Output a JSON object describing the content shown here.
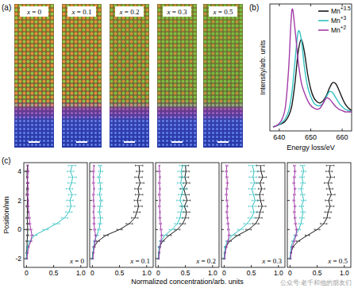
{
  "figure": {
    "panel_labels": [
      "(a)",
      "(b)",
      "(c)"
    ],
    "maps": [
      "x = 0",
      "x = 0.1",
      "x = 0.2",
      "x = 0.3",
      "x = 0.5"
    ],
    "watermark": "公众号·老千和他的朋友们"
  },
  "chart_data": [
    {
      "type": "line",
      "x_label": "Energy loss/eV",
      "y_label": "Intensity/arb. units",
      "x": [
        638,
        639,
        640,
        641,
        642,
        643,
        644,
        645,
        646,
        647,
        648,
        649,
        650,
        651,
        652,
        653,
        654,
        655,
        656,
        657,
        658,
        659,
        660,
        661,
        662,
        663
      ],
      "xlim": [
        637,
        663
      ],
      "ylim": [
        0,
        1
      ],
      "xticks": [
        640,
        650,
        660
      ],
      "tick_labels": "x",
      "legend": "upper right",
      "series": [
        {
          "name": "Mn+3.5",
          "color": "#1a1a1a",
          "values": [
            0.03,
            0.04,
            0.05,
            0.06,
            0.08,
            0.12,
            0.2,
            0.38,
            0.62,
            0.72,
            0.62,
            0.45,
            0.33,
            0.26,
            0.23,
            0.22,
            0.24,
            0.28,
            0.34,
            0.38,
            0.37,
            0.32,
            0.26,
            0.21,
            0.18,
            0.16
          ]
        },
        {
          "name": "Mn+3",
          "color": "#33c1c1",
          "values": [
            0.03,
            0.04,
            0.05,
            0.07,
            0.1,
            0.16,
            0.3,
            0.55,
            0.78,
            0.72,
            0.5,
            0.35,
            0.27,
            0.22,
            0.2,
            0.2,
            0.22,
            0.27,
            0.31,
            0.3,
            0.26,
            0.22,
            0.19,
            0.17,
            0.16,
            0.15
          ]
        },
        {
          "name": "Mn+2",
          "color": "#a23ba8",
          "values": [
            0.03,
            0.04,
            0.06,
            0.1,
            0.2,
            0.5,
            0.95,
            0.8,
            0.55,
            0.38,
            0.3,
            0.24,
            0.2,
            0.18,
            0.17,
            0.18,
            0.22,
            0.26,
            0.25,
            0.22,
            0.19,
            0.17,
            0.16,
            0.15,
            0.15,
            0.15
          ]
        }
      ]
    },
    {
      "type": "line",
      "orientation": "horizontal",
      "annotation": "x = 0",
      "y_label": "Position/nm",
      "y": [
        -2,
        -1.6,
        -1.2,
        -0.8,
        -0.4,
        0,
        0.4,
        0.8,
        1.2,
        1.6,
        2,
        2.4,
        2.8,
        3.2,
        3.6,
        4,
        4.4
      ],
      "xlim": [
        -0.05,
        1.12
      ],
      "ylim": [
        -2.6,
        4.6
      ],
      "xticks": [
        0,
        0.5,
        {
          "value": 1,
          "label": "1.0"
        }
      ],
      "yticks": [
        -2,
        0,
        2,
        4
      ],
      "tick_labels": true,
      "series": [
        {
          "color": "#1a1a1a",
          "values": [
            0.0,
            0.0,
            0.01,
            0.01,
            0.02,
            0.02,
            0.02,
            0.01,
            0.02,
            0.01,
            0.02,
            0.01,
            0.01,
            0.02,
            0.01,
            0.01,
            0.02
          ],
          "errors": [
            0.01,
            0.01,
            0.01,
            0.02,
            0.02,
            0.02,
            0.02,
            0.02,
            0.01,
            0.02,
            0.01,
            0.02,
            0.01,
            0.02,
            0.01,
            0.02,
            0.01
          ]
        },
        {
          "color": "#33c1c1",
          "values": [
            0.0,
            0.01,
            0.02,
            0.06,
            0.15,
            0.35,
            0.55,
            0.7,
            0.78,
            0.82,
            0.8,
            0.84,
            0.79,
            0.83,
            0.85,
            0.81,
            0.84
          ],
          "errors": [
            0.01,
            0.01,
            0.02,
            0.03,
            0.04,
            0.05,
            0.06,
            0.06,
            0.06,
            0.07,
            0.06,
            0.07,
            0.06,
            0.07,
            0.07,
            0.06,
            0.07
          ]
        },
        {
          "color": "#a23ba8",
          "values": [
            0.01,
            0.02,
            0.04,
            0.08,
            0.1,
            0.08,
            0.06,
            0.05,
            0.04,
            0.03,
            0.03,
            0.02,
            0.03,
            0.02,
            0.02,
            0.03,
            0.02
          ],
          "errors": [
            0.01,
            0.01,
            0.01,
            0.02,
            0.02,
            0.02,
            0.02,
            0.02,
            0.01,
            0.02,
            0.01,
            0.02,
            0.01,
            0.02,
            0.01,
            0.02,
            0.01
          ]
        }
      ]
    },
    {
      "type": "line",
      "orientation": "horizontal",
      "annotation": "x = 0.1",
      "y": [
        -2,
        -1.6,
        -1.2,
        -0.8,
        -0.4,
        0,
        0.4,
        0.8,
        1.2,
        1.6,
        2,
        2.4,
        2.8,
        3.2,
        3.6,
        4,
        4.4
      ],
      "xlim": [
        -0.05,
        1.12
      ],
      "ylim": [
        -2.6,
        4.6
      ],
      "xticks": [
        0,
        0.5,
        {
          "value": 1,
          "label": "1.0"
        }
      ],
      "yticks": [
        -2,
        0,
        2,
        4
      ],
      "tick_labels": "x",
      "series": [
        {
          "color": "#1a1a1a",
          "values": [
            0.0,
            0.01,
            0.03,
            0.1,
            0.25,
            0.5,
            0.68,
            0.78,
            0.82,
            0.85,
            0.83,
            0.86,
            0.84,
            0.88,
            0.85,
            0.87,
            0.86
          ],
          "errors": [
            0.01,
            0.01,
            0.02,
            0.03,
            0.04,
            0.05,
            0.06,
            0.06,
            0.06,
            0.07,
            0.06,
            0.07,
            0.06,
            0.07,
            0.07,
            0.06,
            0.07
          ]
        },
        {
          "color": "#33c1c1",
          "values": [
            0.0,
            0.01,
            0.02,
            0.04,
            0.08,
            0.12,
            0.14,
            0.15,
            0.13,
            0.14,
            0.16,
            0.13,
            0.15,
            0.14,
            0.12,
            0.15,
            0.14
          ],
          "errors": [
            0.01,
            0.01,
            0.01,
            0.02,
            0.03,
            0.03,
            0.03,
            0.04,
            0.03,
            0.04,
            0.03,
            0.04,
            0.03,
            0.04,
            0.03,
            0.04,
            0.03
          ]
        },
        {
          "color": "#a23ba8",
          "values": [
            0.01,
            0.02,
            0.03,
            0.05,
            0.06,
            0.04,
            0.03,
            0.03,
            0.02,
            0.03,
            0.02,
            0.02,
            0.03,
            0.02,
            0.02,
            0.02,
            0.03
          ],
          "errors": [
            0.01,
            0.01,
            0.01,
            0.02,
            0.02,
            0.02,
            0.02,
            0.02,
            0.01,
            0.02,
            0.01,
            0.02,
            0.01,
            0.02,
            0.01,
            0.02,
            0.01
          ]
        }
      ]
    },
    {
      "type": "line",
      "orientation": "horizontal",
      "annotation": "x = 0.2",
      "x_label": "Normalized concentration/arb. units",
      "y": [
        -2,
        -1.6,
        -1.2,
        -0.8,
        -0.4,
        0,
        0.4,
        0.8,
        1.2,
        1.6,
        2,
        2.4,
        2.8,
        3.2,
        3.6,
        4,
        4.4
      ],
      "xlim": [
        -0.05,
        1.12
      ],
      "ylim": [
        -2.6,
        4.6
      ],
      "xticks": [
        0,
        0.5,
        {
          "value": 1,
          "label": "1.0"
        }
      ],
      "yticks": [
        -2,
        0,
        2,
        4
      ],
      "tick_labels": "x",
      "series": [
        {
          "color": "#1a1a1a",
          "values": [
            0.0,
            0.01,
            0.02,
            0.08,
            0.2,
            0.35,
            0.45,
            0.5,
            0.52,
            0.48,
            0.53,
            0.5,
            0.47,
            0.52,
            0.49,
            0.51,
            0.5
          ],
          "errors": [
            0.01,
            0.01,
            0.02,
            0.03,
            0.04,
            0.05,
            0.05,
            0.06,
            0.06,
            0.06,
            0.06,
            0.07,
            0.06,
            0.06,
            0.07,
            0.06,
            0.06
          ]
        },
        {
          "color": "#33c1c1",
          "values": [
            0.0,
            0.01,
            0.02,
            0.05,
            0.12,
            0.25,
            0.35,
            0.4,
            0.42,
            0.45,
            0.4,
            0.43,
            0.46,
            0.41,
            0.44,
            0.42,
            0.45
          ],
          "errors": [
            0.01,
            0.01,
            0.02,
            0.03,
            0.04,
            0.05,
            0.05,
            0.06,
            0.06,
            0.06,
            0.06,
            0.06,
            0.07,
            0.06,
            0.06,
            0.06,
            0.06
          ]
        },
        {
          "color": "#a23ba8",
          "values": [
            0.01,
            0.02,
            0.03,
            0.05,
            0.06,
            0.05,
            0.04,
            0.03,
            0.03,
            0.02,
            0.03,
            0.02,
            0.03,
            0.02,
            0.03,
            0.02,
            0.02
          ],
          "errors": [
            0.01,
            0.01,
            0.01,
            0.02,
            0.02,
            0.02,
            0.02,
            0.02,
            0.01,
            0.02,
            0.01,
            0.02,
            0.01,
            0.02,
            0.01,
            0.02,
            0.01
          ]
        }
      ]
    },
    {
      "type": "line",
      "orientation": "horizontal",
      "annotation": "x = 0.3",
      "y": [
        -2,
        -1.6,
        -1.2,
        -0.8,
        -0.4,
        0,
        0.4,
        0.8,
        1.2,
        1.6,
        2,
        2.4,
        2.8,
        3.2,
        3.6,
        4,
        4.4
      ],
      "xlim": [
        -0.05,
        1.12
      ],
      "ylim": [
        -2.6,
        4.6
      ],
      "xticks": [
        0,
        0.5,
        {
          "value": 1,
          "label": "1.0"
        }
      ],
      "yticks": [
        -2,
        0,
        2,
        4
      ],
      "tick_labels": "x",
      "series": [
        {
          "color": "#1a1a1a",
          "values": [
            0.0,
            0.01,
            0.03,
            0.1,
            0.25,
            0.45,
            0.58,
            0.64,
            0.66,
            0.7,
            0.67,
            0.65,
            0.69,
            0.66,
            0.71,
            0.68,
            0.67
          ],
          "errors": [
            0.01,
            0.01,
            0.02,
            0.03,
            0.04,
            0.05,
            0.06,
            0.06,
            0.06,
            0.07,
            0.06,
            0.07,
            0.06,
            0.07,
            0.07,
            0.06,
            0.07
          ]
        },
        {
          "color": "#33c1c1",
          "values": [
            0.0,
            0.01,
            0.02,
            0.06,
            0.15,
            0.3,
            0.42,
            0.5,
            0.55,
            0.52,
            0.57,
            0.54,
            0.51,
            0.56,
            0.53,
            0.55,
            0.52
          ],
          "errors": [
            0.01,
            0.01,
            0.02,
            0.03,
            0.04,
            0.05,
            0.06,
            0.06,
            0.06,
            0.07,
            0.06,
            0.07,
            0.06,
            0.07,
            0.07,
            0.06,
            0.07
          ]
        },
        {
          "color": "#a23ba8",
          "values": [
            0.01,
            0.02,
            0.04,
            0.07,
            0.09,
            0.08,
            0.07,
            0.06,
            0.05,
            0.06,
            0.05,
            0.04,
            0.05,
            0.06,
            0.05,
            0.04,
            0.05
          ],
          "errors": [
            0.01,
            0.01,
            0.01,
            0.02,
            0.02,
            0.02,
            0.02,
            0.02,
            0.02,
            0.02,
            0.02,
            0.02,
            0.02,
            0.02,
            0.02,
            0.02,
            0.02
          ]
        }
      ]
    },
    {
      "type": "line",
      "orientation": "horizontal",
      "annotation": "x = 0.5",
      "y": [
        -2,
        -1.6,
        -1.2,
        -0.8,
        -0.4,
        0,
        0.4,
        0.8,
        1.2,
        1.6,
        2,
        2.4,
        2.8,
        3.2,
        3.6,
        4,
        4.4
      ],
      "xlim": [
        -0.05,
        1.12
      ],
      "ylim": [
        -2.6,
        4.6
      ],
      "xticks": [
        0,
        0.5,
        {
          "value": 1,
          "label": "1.0"
        }
      ],
      "yticks": [
        -2,
        0,
        2,
        4
      ],
      "tick_labels": "x",
      "series": [
        {
          "color": "#1a1a1a",
          "values": [
            0.0,
            0.02,
            0.05,
            0.15,
            0.32,
            0.5,
            0.62,
            0.68,
            0.7,
            0.74,
            0.71,
            0.76,
            0.73,
            0.7,
            0.75,
            0.72,
            0.74
          ],
          "errors": [
            0.01,
            0.01,
            0.02,
            0.03,
            0.04,
            0.05,
            0.06,
            0.06,
            0.06,
            0.07,
            0.06,
            0.07,
            0.06,
            0.07,
            0.07,
            0.06,
            0.07
          ]
        },
        {
          "color": "#33c1c1",
          "values": [
            0.0,
            0.01,
            0.02,
            0.05,
            0.1,
            0.16,
            0.2,
            0.22,
            0.24,
            0.21,
            0.25,
            0.23,
            0.2,
            0.24,
            0.22,
            0.25,
            0.23
          ],
          "errors": [
            0.01,
            0.01,
            0.01,
            0.02,
            0.03,
            0.03,
            0.04,
            0.04,
            0.04,
            0.04,
            0.04,
            0.04,
            0.04,
            0.04,
            0.04,
            0.04,
            0.04
          ]
        },
        {
          "color": "#a23ba8",
          "values": [
            0.01,
            0.02,
            0.04,
            0.08,
            0.11,
            0.12,
            0.1,
            0.09,
            0.08,
            0.09,
            0.07,
            0.08,
            0.09,
            0.07,
            0.08,
            0.09,
            0.08
          ],
          "errors": [
            0.01,
            0.01,
            0.01,
            0.02,
            0.02,
            0.02,
            0.02,
            0.02,
            0.02,
            0.02,
            0.02,
            0.02,
            0.02,
            0.02,
            0.02,
            0.02,
            0.02
          ]
        }
      ]
    }
  ]
}
